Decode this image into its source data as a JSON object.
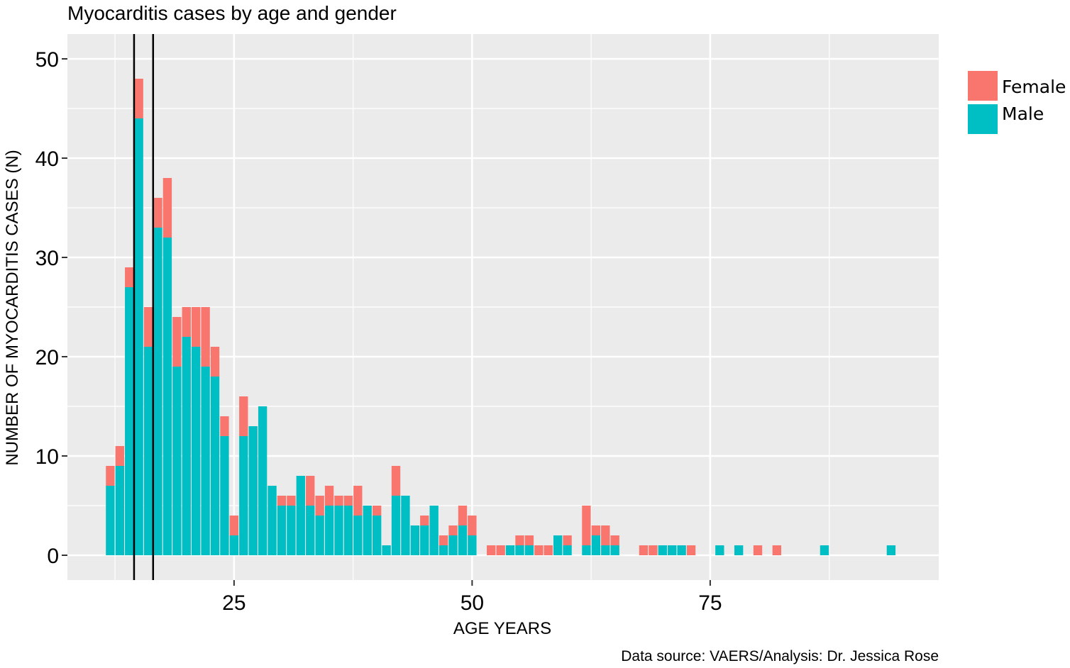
{
  "colors": {
    "female": "#F8766D",
    "male": "#00BFC4",
    "panel": "#EBEBEB",
    "grid": "#FFFFFF",
    "marker": "#000000"
  },
  "chart_data": {
    "type": "bar",
    "stacked": true,
    "title": "Myocarditis cases by age and gender",
    "xlabel": "AGE YEARS",
    "ylabel": "NUMBER OF MYOCARDITIS CASES (N)",
    "caption": "Data source: VAERS/Analysis: Dr. Jessica Rose",
    "xlim": [
      7.5,
      99
    ],
    "ylim": [
      -2.5,
      52.5
    ],
    "xticks": [
      "25",
      "50",
      "75"
    ],
    "yticks": [
      "0",
      "10",
      "20",
      "30",
      "40",
      "50"
    ],
    "grid": true,
    "legend_position": "right",
    "vertical_lines_at_age": [
      14.5,
      16.5
    ],
    "series": [
      {
        "name": "Male",
        "color": "#00BFC4",
        "x": [
          12,
          13,
          14,
          15,
          16,
          17,
          18,
          19,
          20,
          21,
          22,
          23,
          24,
          25,
          26,
          27,
          28,
          29,
          30,
          31,
          32,
          33,
          34,
          35,
          36,
          37,
          38,
          39,
          40,
          41,
          42,
          43,
          44,
          45,
          46,
          47,
          48,
          49,
          50,
          52,
          53,
          54,
          55,
          56,
          57,
          58,
          59,
          60,
          62,
          63,
          64,
          65,
          68,
          69,
          70,
          71,
          72,
          73,
          76,
          78,
          80,
          82,
          87,
          94
        ],
        "values": [
          7,
          9,
          27,
          44,
          21,
          33,
          32,
          19,
          22,
          21,
          19,
          18,
          12,
          2,
          12,
          13,
          15,
          7,
          5,
          5,
          8,
          5,
          4,
          5,
          5,
          5,
          4,
          5,
          4,
          1,
          6,
          6,
          3,
          3,
          5,
          1,
          2,
          3,
          2,
          0,
          0,
          1,
          1,
          1,
          0,
          0,
          2,
          1,
          1,
          2,
          1,
          1,
          0,
          0,
          1,
          1,
          1,
          0,
          1,
          1,
          0,
          0,
          1,
          1
        ]
      },
      {
        "name": "Female",
        "color": "#F8766D",
        "x": [
          12,
          13,
          14,
          15,
          16,
          17,
          18,
          19,
          20,
          21,
          22,
          23,
          24,
          25,
          26,
          27,
          28,
          29,
          30,
          31,
          32,
          33,
          34,
          35,
          36,
          37,
          38,
          39,
          40,
          41,
          42,
          43,
          44,
          45,
          46,
          47,
          48,
          49,
          50,
          52,
          53,
          54,
          55,
          56,
          57,
          58,
          59,
          60,
          62,
          63,
          64,
          65,
          68,
          69,
          70,
          71,
          72,
          73,
          76,
          78,
          80,
          82,
          87,
          94
        ],
        "values": [
          2,
          2,
          2,
          4,
          4,
          3,
          6,
          5,
          3,
          4,
          6,
          3,
          2,
          2,
          4,
          0,
          0,
          0,
          1,
          1,
          0,
          3,
          2,
          2,
          1,
          1,
          3,
          0,
          1,
          0,
          3,
          0,
          0,
          1,
          0,
          1,
          1,
          2,
          2,
          1,
          1,
          0,
          1,
          1,
          1,
          1,
          0,
          1,
          4,
          1,
          2,
          1,
          1,
          1,
          0,
          0,
          0,
          1,
          0,
          0,
          1,
          1,
          0,
          0
        ]
      }
    ]
  }
}
